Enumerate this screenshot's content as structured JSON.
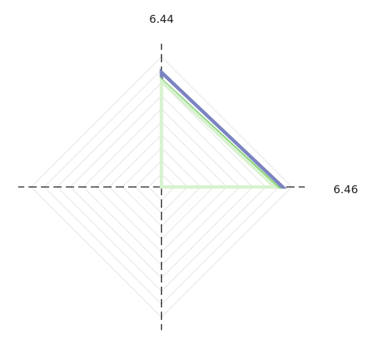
{
  "chart_data": {
    "type": "radar",
    "title": "",
    "axes": [
      {
        "label": "6.44",
        "direction": "up"
      },
      {
        "label": "6.46",
        "direction": "right"
      },
      {
        "label": "",
        "direction": "down"
      },
      {
        "label": "",
        "direction": "left"
      }
    ],
    "range": [
      0,
      1
    ],
    "grid_levels": 10,
    "grid": true,
    "legend": "none",
    "series": [
      {
        "color": "#7b83c2",
        "values": [
          0.88,
          0.93,
          0,
          0
        ]
      },
      {
        "color": "#8cd47e",
        "values": [
          0.82,
          0.89,
          0,
          0
        ]
      },
      {
        "color": "#d8f2cf",
        "values": [
          0.81,
          0.87,
          0,
          0
        ]
      }
    ],
    "colors": {
      "grid": "#e6e6e6",
      "axis": "#000000"
    }
  }
}
